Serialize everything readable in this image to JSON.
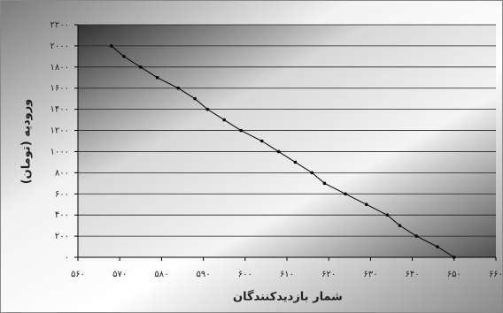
{
  "chart_data": {
    "type": "line",
    "x_label": "شمار بازدیدکنندگان",
    "y_label": "ورودیه (تومان)",
    "x": [
      568,
      571,
      575,
      579,
      584,
      588,
      591,
      595,
      599,
      604,
      608,
      612,
      616,
      619,
      624,
      629,
      634,
      637,
      641,
      646,
      650
    ],
    "series": [
      {
        "color": "#000000",
        "values": [
          2000,
          1900,
          1800,
          1700,
          1600,
          1500,
          1400,
          1300,
          1200,
          1100,
          1000,
          900,
          800,
          700,
          600,
          500,
          400,
          300,
          200,
          100,
          0
        ]
      }
    ],
    "xlim": [
      560,
      660
    ],
    "xticks": [
      {
        "value": 560,
        "label": "۵۶۰"
      },
      {
        "value": 570,
        "label": "۵۷۰"
      },
      {
        "value": 580,
        "label": "۵۸۰"
      },
      {
        "value": 590,
        "label": "۵۹۰"
      },
      {
        "value": 600,
        "label": "۶۰۰"
      },
      {
        "value": 610,
        "label": "۶۱۰"
      },
      {
        "value": 620,
        "label": "۶۲۰"
      },
      {
        "value": 630,
        "label": "۶۳۰"
      },
      {
        "value": 640,
        "label": "۶۴۰"
      },
      {
        "value": 650,
        "label": "۶۵۰"
      },
      {
        "value": 660,
        "label": "۶۶۰"
      }
    ],
    "ylim": [
      0,
      2200
    ],
    "yticks": [
      {
        "value": 0,
        "label": "۰"
      },
      {
        "value": 200,
        "label": "۲۰۰"
      },
      {
        "value": 400,
        "label": "۴۰۰"
      },
      {
        "value": 600,
        "label": "۶۰۰"
      },
      {
        "value": 800,
        "label": "۸۰۰"
      },
      {
        "value": 1000,
        "label": "۱۰۰۰"
      },
      {
        "value": 1200,
        "label": "۱۲۰۰"
      },
      {
        "value": 1400,
        "label": "۱۴۰۰"
      },
      {
        "value": 1600,
        "label": "۱۶۰۰"
      },
      {
        "value": 1800,
        "label": "۱۸۰۰"
      },
      {
        "value": 2000,
        "label": "۲۰۰۰"
      },
      {
        "value": 2200,
        "label": "۲۲۰۰"
      }
    ],
    "grid": true
  }
}
